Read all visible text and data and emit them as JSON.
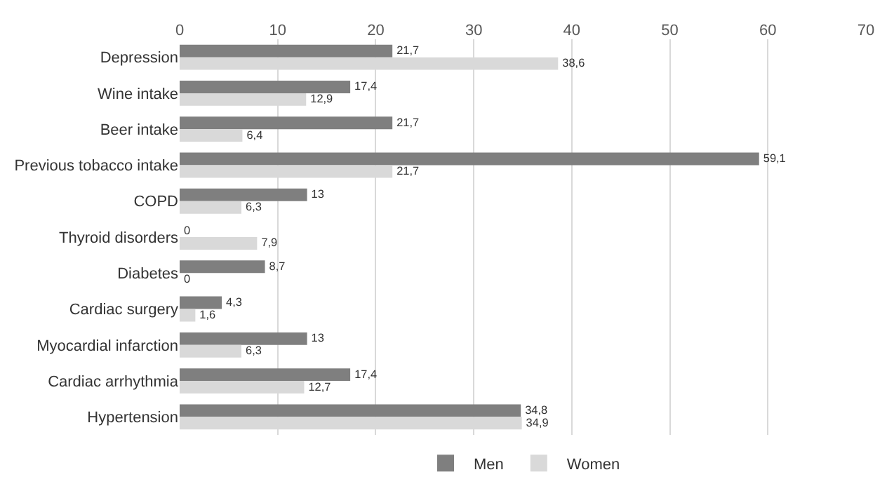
{
  "chart_data": {
    "type": "bar",
    "orientation": "horizontal",
    "categories": [
      "Depression",
      "Wine intake",
      "Beer intake",
      "Previous tobacco intake",
      "COPD",
      "Thyroid disorders",
      "Diabetes",
      "Cardiac surgery",
      "Myocardial infarction",
      "Cardiac arrhythmia",
      "Hypertension"
    ],
    "series": [
      {
        "name": "Men",
        "color": "#7f7f7f",
        "values": [
          21.7,
          17.4,
          21.7,
          59.1,
          13,
          0,
          8.7,
          4.3,
          13,
          17.4,
          34.8
        ],
        "value_labels": [
          "21,7",
          "17,4",
          "21,7",
          "59,1",
          "13",
          "0",
          "8,7",
          "4,3",
          "13",
          "17,4",
          "34,8"
        ]
      },
      {
        "name": "Women",
        "color": "#d9d9d9",
        "values": [
          38.6,
          12.9,
          6.4,
          21.7,
          6.3,
          7.9,
          0,
          1.6,
          6.3,
          12.7,
          34.9
        ],
        "value_labels": [
          "38,6",
          "12,9",
          "6,4",
          "21,7",
          "6,3",
          "7,9",
          "0",
          "1,6",
          "6,3",
          "12,7",
          "34,9"
        ]
      }
    ],
    "xlim": [
      0,
      70
    ],
    "xticks": [
      0,
      10,
      20,
      30,
      40,
      50,
      60,
      70
    ],
    "grid": "x",
    "legend": "bottom"
  }
}
